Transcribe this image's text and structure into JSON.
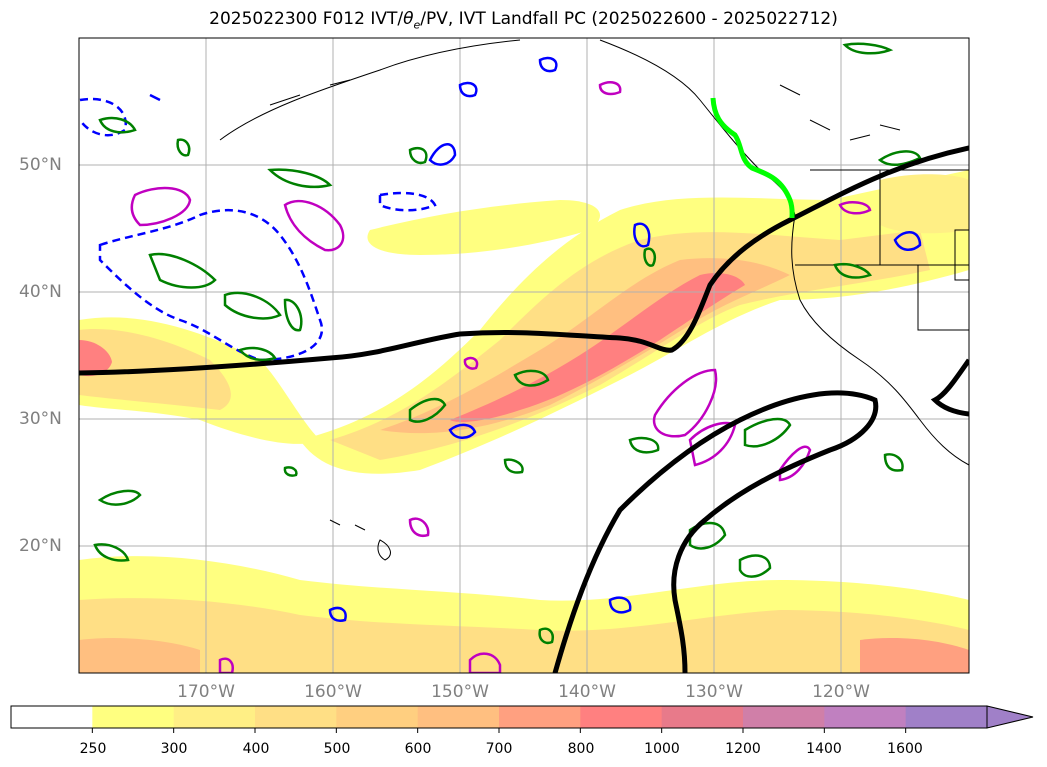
{
  "title": "2025022300 F012 IVT/θe/PV, IVT Landfall PC (2025022600 - 2025022712)",
  "title_parts": {
    "prefix": "2025022300 F012 IVT/",
    "theta": "θ",
    "theta_sub": "e",
    "suffix": "/PV, IVT Landfall PC (2025022600 - 2025022712)"
  },
  "map": {
    "lat_labels": [
      "50°N",
      "40°N",
      "30°N",
      "20°N"
    ],
    "lon_labels": [
      "170°W",
      "160°W",
      "150°W",
      "140°W",
      "130°W",
      "120°W"
    ],
    "extent": {
      "lon": [
        -180,
        -110
      ],
      "lat": [
        10,
        60
      ]
    },
    "grid": true
  },
  "colorbar": {
    "ticks": [
      "250",
      "300",
      "400",
      "500",
      "600",
      "700",
      "800",
      "1000",
      "1200",
      "1400",
      "1600"
    ],
    "colors": [
      "#ffffff",
      "#ffff80",
      "#ffef85",
      "#ffdf85",
      "#ffcf80",
      "#ffbf80",
      "#ffa080",
      "#ff8080",
      "#e87a8a",
      "#d07fa8",
      "#c080c0",
      "#a080c8"
    ],
    "extend": "max"
  },
  "contours": {
    "theta_e_color": "#0000ff",
    "pv_color": "#008000",
    "pc_color": "#c000c0",
    "landfall_pc_color": "#00ff00",
    "ivt_pc_color": "#000000"
  }
}
